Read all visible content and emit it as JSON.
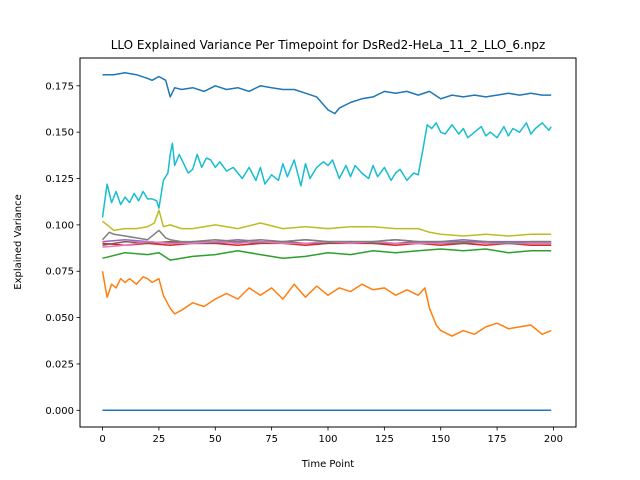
{
  "chart_data": {
    "type": "line",
    "title": "LLO Explained Variance Per Timepoint for DsRed2-HeLa_11_2_LLO_6.npz",
    "xlabel": "Time Point",
    "ylabel": "Explained Variance",
    "xlim": [
      -10,
      210
    ],
    "ylim": [
      -0.009,
      0.19
    ],
    "xticks": [
      0,
      25,
      50,
      75,
      100,
      125,
      150,
      175,
      200
    ],
    "yticks": [
      0.0,
      0.025,
      0.05,
      0.075,
      0.1,
      0.125,
      0.15,
      0.175
    ],
    "ytick_labels": [
      "0.000",
      "0.025",
      "0.050",
      "0.075",
      "0.100",
      "0.125",
      "0.150",
      "0.175"
    ],
    "grid": false,
    "legend": "none",
    "series": [
      {
        "color": "#1f77b4",
        "x": [
          0,
          5,
          10,
          15,
          20,
          22,
          25,
          28,
          30,
          32,
          35,
          40,
          45,
          50,
          55,
          60,
          65,
          70,
          75,
          80,
          85,
          90,
          95,
          100,
          103,
          105,
          110,
          115,
          120,
          125,
          130,
          135,
          140,
          145,
          150,
          155,
          160,
          165,
          170,
          175,
          180,
          185,
          190,
          195,
          199
        ],
        "y": [
          0.181,
          0.181,
          0.182,
          0.181,
          0.179,
          0.178,
          0.18,
          0.178,
          0.169,
          0.174,
          0.173,
          0.174,
          0.172,
          0.175,
          0.173,
          0.174,
          0.172,
          0.175,
          0.174,
          0.173,
          0.173,
          0.171,
          0.169,
          0.162,
          0.16,
          0.163,
          0.166,
          0.168,
          0.169,
          0.172,
          0.171,
          0.172,
          0.17,
          0.172,
          0.168,
          0.17,
          0.169,
          0.17,
          0.169,
          0.17,
          0.171,
          0.17,
          0.171,
          0.17,
          0.17
        ]
      },
      {
        "color": "#ff7f0e",
        "x": [
          0,
          2,
          4,
          6,
          8,
          10,
          12,
          15,
          18,
          20,
          22,
          25,
          27,
          30,
          32,
          35,
          40,
          45,
          50,
          55,
          60,
          65,
          70,
          75,
          80,
          85,
          90,
          95,
          100,
          105,
          110,
          115,
          120,
          125,
          130,
          135,
          140,
          143,
          145,
          148,
          150,
          155,
          160,
          165,
          170,
          175,
          180,
          185,
          190,
          195,
          199
        ],
        "y": [
          0.075,
          0.061,
          0.068,
          0.066,
          0.071,
          0.069,
          0.071,
          0.068,
          0.072,
          0.071,
          0.069,
          0.071,
          0.062,
          0.055,
          0.052,
          0.054,
          0.058,
          0.056,
          0.06,
          0.063,
          0.06,
          0.066,
          0.062,
          0.066,
          0.06,
          0.068,
          0.061,
          0.067,
          0.062,
          0.066,
          0.064,
          0.068,
          0.065,
          0.066,
          0.062,
          0.065,
          0.062,
          0.066,
          0.055,
          0.046,
          0.043,
          0.04,
          0.043,
          0.041,
          0.045,
          0.047,
          0.044,
          0.045,
          0.046,
          0.041,
          0.043
        ]
      },
      {
        "color": "#2ca02c",
        "x": [
          0,
          10,
          20,
          25,
          30,
          35,
          40,
          50,
          60,
          70,
          80,
          90,
          100,
          110,
          120,
          130,
          140,
          150,
          160,
          170,
          180,
          190,
          199
        ],
        "y": [
          0.082,
          0.085,
          0.084,
          0.085,
          0.081,
          0.082,
          0.083,
          0.084,
          0.086,
          0.084,
          0.082,
          0.083,
          0.085,
          0.084,
          0.086,
          0.085,
          0.086,
          0.087,
          0.086,
          0.087,
          0.085,
          0.086,
          0.086
        ]
      },
      {
        "color": "#d62728",
        "x": [
          0,
          10,
          20,
          30,
          40,
          50,
          60,
          70,
          80,
          90,
          100,
          110,
          120,
          130,
          140,
          150,
          160,
          170,
          180,
          190,
          199
        ],
        "y": [
          0.09,
          0.089,
          0.09,
          0.089,
          0.09,
          0.09,
          0.089,
          0.09,
          0.09,
          0.089,
          0.09,
          0.09,
          0.09,
          0.089,
          0.09,
          0.089,
          0.09,
          0.089,
          0.09,
          0.089,
          0.089
        ]
      },
      {
        "color": "#9467bd",
        "x": [
          0,
          10,
          20,
          30,
          40,
          50,
          60,
          70,
          80,
          90,
          100,
          110,
          120,
          130,
          140,
          150,
          160,
          170,
          180,
          190,
          199
        ],
        "y": [
          0.091,
          0.092,
          0.091,
          0.09,
          0.091,
          0.091,
          0.092,
          0.091,
          0.091,
          0.092,
          0.091,
          0.091,
          0.091,
          0.092,
          0.091,
          0.091,
          0.092,
          0.091,
          0.091,
          0.091,
          0.091
        ]
      },
      {
        "color": "#8c564b",
        "x": [
          0,
          10,
          20,
          30,
          40,
          50,
          60,
          70,
          80,
          90,
          100,
          110,
          120,
          130,
          140,
          150,
          160,
          170,
          180,
          190,
          199
        ],
        "y": [
          0.089,
          0.091,
          0.09,
          0.091,
          0.09,
          0.09,
          0.091,
          0.09,
          0.091,
          0.09,
          0.09,
          0.091,
          0.09,
          0.09,
          0.091,
          0.09,
          0.09,
          0.091,
          0.09,
          0.09,
          0.09
        ]
      },
      {
        "color": "#e377c2",
        "x": [
          0,
          10,
          20,
          30,
          40,
          50,
          60,
          70,
          80,
          90,
          100,
          110,
          120,
          130,
          140,
          150,
          160,
          170,
          180,
          190,
          199
        ],
        "y": [
          0.088,
          0.089,
          0.091,
          0.09,
          0.09,
          0.091,
          0.09,
          0.091,
          0.09,
          0.09,
          0.091,
          0.09,
          0.091,
          0.09,
          0.09,
          0.09,
          0.091,
          0.09,
          0.09,
          0.09,
          0.09
        ]
      },
      {
        "color": "#7f7f7f",
        "x": [
          0,
          3,
          5,
          10,
          15,
          20,
          25,
          28,
          30,
          35,
          40,
          50,
          60,
          70,
          80,
          90,
          100,
          110,
          120,
          130,
          140,
          150,
          160,
          170,
          180,
          190,
          199
        ],
        "y": [
          0.092,
          0.096,
          0.095,
          0.094,
          0.093,
          0.092,
          0.097,
          0.093,
          0.092,
          0.091,
          0.091,
          0.092,
          0.091,
          0.092,
          0.091,
          0.092,
          0.091,
          0.091,
          0.091,
          0.092,
          0.091,
          0.091,
          0.091,
          0.091,
          0.09,
          0.091,
          0.091
        ]
      },
      {
        "color": "#bcbd22",
        "x": [
          0,
          3,
          5,
          10,
          15,
          20,
          23,
          25,
          27,
          30,
          35,
          40,
          50,
          60,
          70,
          80,
          90,
          100,
          110,
          120,
          130,
          140,
          145,
          150,
          160,
          170,
          180,
          190,
          199
        ],
        "y": [
          0.102,
          0.099,
          0.097,
          0.098,
          0.098,
          0.099,
          0.101,
          0.108,
          0.099,
          0.1,
          0.098,
          0.098,
          0.1,
          0.098,
          0.101,
          0.098,
          0.099,
          0.098,
          0.099,
          0.099,
          0.098,
          0.098,
          0.096,
          0.095,
          0.094,
          0.095,
          0.094,
          0.095,
          0.095
        ]
      },
      {
        "color": "#17becf",
        "x": [
          0,
          2,
          4,
          6,
          8,
          10,
          12,
          14,
          16,
          18,
          20,
          22,
          24,
          25,
          27,
          29,
          30,
          31,
          32,
          34,
          36,
          38,
          40,
          42,
          44,
          46,
          48,
          50,
          52,
          55,
          58,
          60,
          62,
          65,
          68,
          70,
          72,
          75,
          78,
          80,
          82,
          85,
          88,
          90,
          92,
          95,
          98,
          100,
          102,
          105,
          108,
          110,
          112,
          115,
          118,
          120,
          122,
          125,
          128,
          130,
          132,
          135,
          138,
          140,
          142,
          144,
          146,
          148,
          150,
          152,
          155,
          158,
          160,
          162,
          165,
          168,
          170,
          172,
          175,
          178,
          180,
          182,
          185,
          188,
          190,
          192,
          195,
          198,
          199
        ],
        "y": [
          0.104,
          0.122,
          0.112,
          0.118,
          0.111,
          0.115,
          0.112,
          0.117,
          0.113,
          0.118,
          0.114,
          0.114,
          0.113,
          0.109,
          0.124,
          0.128,
          0.138,
          0.144,
          0.132,
          0.138,
          0.133,
          0.128,
          0.13,
          0.138,
          0.131,
          0.136,
          0.135,
          0.131,
          0.134,
          0.129,
          0.131,
          0.128,
          0.125,
          0.131,
          0.124,
          0.131,
          0.122,
          0.127,
          0.124,
          0.133,
          0.126,
          0.135,
          0.121,
          0.133,
          0.125,
          0.131,
          0.134,
          0.132,
          0.135,
          0.125,
          0.132,
          0.126,
          0.132,
          0.128,
          0.125,
          0.132,
          0.126,
          0.131,
          0.124,
          0.128,
          0.13,
          0.124,
          0.128,
          0.127,
          0.14,
          0.154,
          0.152,
          0.155,
          0.15,
          0.149,
          0.154,
          0.149,
          0.152,
          0.147,
          0.15,
          0.153,
          0.148,
          0.15,
          0.147,
          0.153,
          0.148,
          0.152,
          0.15,
          0.155,
          0.149,
          0.152,
          0.155,
          0.151,
          0.153
        ]
      },
      {
        "color": "#1f77b4",
        "x": [
          0,
          50,
          100,
          150,
          199
        ],
        "y": [
          0.0,
          0.0,
          0.0,
          0.0,
          0.0
        ]
      }
    ]
  }
}
